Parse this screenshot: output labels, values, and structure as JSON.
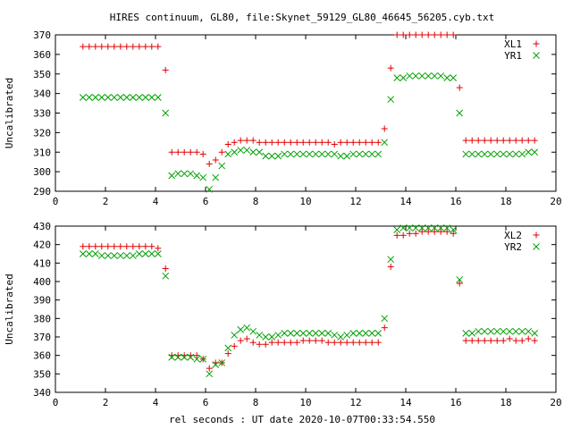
{
  "title": "HIRES continuum, GL80, file:Skynet_59129_GL80_46645_56205.cyb.txt",
  "xlabel": "rel seconds : UT date 2020-10-07T00:33:54.550",
  "colors": {
    "red": "#e00000",
    "green": "#00a000"
  },
  "chart_data": [
    {
      "type": "scatter",
      "ylabel": "Uncalibrated",
      "xlim": [
        0,
        20
      ],
      "ylim": [
        290,
        370
      ],
      "xticks": [
        0,
        2,
        4,
        6,
        8,
        10,
        12,
        14,
        16,
        18,
        20
      ],
      "yticks": [
        290,
        300,
        310,
        320,
        330,
        340,
        350,
        360,
        370
      ],
      "legend": "top-right",
      "series": [
        {
          "name": "XL1",
          "marker": "plus",
          "color": "#e00000",
          "x": [
            1.1,
            1.35,
            1.6,
            1.85,
            2.1,
            2.35,
            2.6,
            2.85,
            3.1,
            3.35,
            3.6,
            3.85,
            4.1,
            4.4,
            4.65,
            4.9,
            5.15,
            5.4,
            5.65,
            5.9,
            6.15,
            6.4,
            6.65,
            6.9,
            7.15,
            7.4,
            7.65,
            7.9,
            8.15,
            8.4,
            8.65,
            8.9,
            9.15,
            9.4,
            9.65,
            9.9,
            10.15,
            10.4,
            10.65,
            10.9,
            11.15,
            11.4,
            11.65,
            11.9,
            12.15,
            12.4,
            12.65,
            12.9,
            13.15,
            13.4,
            13.65,
            13.9,
            14.15,
            14.4,
            14.65,
            14.9,
            15.15,
            15.4,
            15.65,
            15.9,
            16.15,
            16.4,
            16.65,
            16.9,
            17.15,
            17.4,
            17.65,
            17.9,
            18.15,
            18.4,
            18.65,
            18.9,
            19.15
          ],
          "y": [
            364,
            364,
            364,
            364,
            364,
            364,
            364,
            364,
            364,
            364,
            364,
            364,
            364,
            352,
            310,
            310,
            310,
            310,
            310,
            309,
            304,
            306,
            310,
            314,
            315,
            316,
            316,
            316,
            315,
            315,
            315,
            315,
            315,
            315,
            315,
            315,
            315,
            315,
            315,
            315,
            314,
            315,
            315,
            315,
            315,
            315,
            315,
            315,
            322,
            353,
            370,
            370,
            370,
            370,
            370,
            370,
            370,
            370,
            370,
            370,
            343,
            316,
            316,
            316,
            316,
            316,
            316,
            316,
            316,
            316,
            316,
            316,
            316
          ]
        },
        {
          "name": "YR1",
          "marker": "cross",
          "color": "#00a000",
          "x": [
            1.1,
            1.35,
            1.6,
            1.85,
            2.1,
            2.35,
            2.6,
            2.85,
            3.1,
            3.35,
            3.6,
            3.85,
            4.1,
            4.4,
            4.65,
            4.9,
            5.15,
            5.4,
            5.65,
            5.9,
            6.15,
            6.4,
            6.65,
            6.9,
            7.15,
            7.4,
            7.65,
            7.9,
            8.15,
            8.4,
            8.65,
            8.9,
            9.15,
            9.4,
            9.65,
            9.9,
            10.15,
            10.4,
            10.65,
            10.9,
            11.15,
            11.4,
            11.65,
            11.9,
            12.15,
            12.4,
            12.65,
            12.9,
            13.15,
            13.4,
            13.65,
            13.9,
            14.15,
            14.4,
            14.65,
            14.9,
            15.15,
            15.4,
            15.65,
            15.9,
            16.15,
            16.4,
            16.65,
            16.9,
            17.15,
            17.4,
            17.65,
            17.9,
            18.15,
            18.4,
            18.65,
            18.9,
            19.15
          ],
          "y": [
            338,
            338,
            338,
            338,
            338,
            338,
            338,
            338,
            338,
            338,
            338,
            338,
            338,
            330,
            298,
            299,
            299,
            299,
            298,
            297,
            291,
            297,
            303,
            309,
            310,
            311,
            311,
            310,
            310,
            308,
            308,
            308,
            309,
            309,
            309,
            309,
            309,
            309,
            309,
            309,
            309,
            308,
            308,
            309,
            309,
            309,
            309,
            309,
            315,
            337,
            348,
            348,
            349,
            349,
            349,
            349,
            349,
            349,
            348,
            348,
            330,
            309,
            309,
            309,
            309,
            309,
            309,
            309,
            309,
            309,
            309,
            310,
            310
          ]
        }
      ]
    },
    {
      "type": "scatter",
      "ylabel": "Uncalibrated",
      "xlim": [
        0,
        20
      ],
      "ylim": [
        340,
        430
      ],
      "xticks": [
        0,
        2,
        4,
        6,
        8,
        10,
        12,
        14,
        16,
        18,
        20
      ],
      "yticks": [
        340,
        350,
        360,
        370,
        380,
        390,
        400,
        410,
        420,
        430
      ],
      "legend": "top-right",
      "series": [
        {
          "name": "XL2",
          "marker": "plus",
          "color": "#e00000",
          "x": [
            1.1,
            1.35,
            1.6,
            1.85,
            2.1,
            2.35,
            2.6,
            2.85,
            3.1,
            3.35,
            3.6,
            3.85,
            4.1,
            4.4,
            4.65,
            4.9,
            5.15,
            5.4,
            5.65,
            5.9,
            6.15,
            6.4,
            6.65,
            6.9,
            7.15,
            7.4,
            7.65,
            7.9,
            8.15,
            8.4,
            8.65,
            8.9,
            9.15,
            9.4,
            9.65,
            9.9,
            10.15,
            10.4,
            10.65,
            10.9,
            11.15,
            11.4,
            11.65,
            11.9,
            12.15,
            12.4,
            12.65,
            12.9,
            13.15,
            13.4,
            13.65,
            13.9,
            14.15,
            14.4,
            14.65,
            14.9,
            15.15,
            15.4,
            15.65,
            15.9,
            16.15,
            16.4,
            16.65,
            16.9,
            17.15,
            17.4,
            17.65,
            17.9,
            18.15,
            18.4,
            18.65,
            18.9,
            19.15
          ],
          "y": [
            419,
            419,
            419,
            419,
            419,
            419,
            419,
            419,
            419,
            419,
            419,
            419,
            418,
            407,
            360,
            360,
            360,
            360,
            360,
            358,
            353,
            356,
            356,
            361,
            365,
            368,
            369,
            367,
            366,
            366,
            367,
            367,
            367,
            367,
            367,
            368,
            368,
            368,
            368,
            367,
            367,
            367,
            367,
            367,
            367,
            367,
            367,
            367,
            375,
            408,
            425,
            425,
            426,
            426,
            427,
            427,
            427,
            427,
            427,
            426,
            399,
            368,
            368,
            368,
            368,
            368,
            368,
            368,
            369,
            368,
            368,
            369,
            368
          ]
        },
        {
          "name": "YR2",
          "marker": "cross",
          "color": "#00a000",
          "x": [
            1.1,
            1.35,
            1.6,
            1.85,
            2.1,
            2.35,
            2.6,
            2.85,
            3.1,
            3.35,
            3.6,
            3.85,
            4.1,
            4.4,
            4.65,
            4.9,
            5.15,
            5.4,
            5.65,
            5.9,
            6.15,
            6.4,
            6.65,
            6.9,
            7.15,
            7.4,
            7.65,
            7.9,
            8.15,
            8.4,
            8.65,
            8.9,
            9.15,
            9.4,
            9.65,
            9.9,
            10.15,
            10.4,
            10.65,
            10.9,
            11.15,
            11.4,
            11.65,
            11.9,
            12.15,
            12.4,
            12.65,
            12.9,
            13.15,
            13.4,
            13.65,
            13.9,
            14.15,
            14.4,
            14.65,
            14.9,
            15.15,
            15.4,
            15.65,
            15.9,
            16.15,
            16.4,
            16.65,
            16.9,
            17.15,
            17.4,
            17.65,
            17.9,
            18.15,
            18.4,
            18.65,
            18.9,
            19.15
          ],
          "y": [
            415,
            415,
            415,
            414,
            414,
            414,
            414,
            414,
            414,
            415,
            415,
            415,
            415,
            403,
            359,
            359,
            359,
            359,
            358,
            358,
            350,
            355,
            356,
            364,
            371,
            374,
            375,
            373,
            371,
            370,
            370,
            371,
            372,
            372,
            372,
            372,
            372,
            372,
            372,
            372,
            371,
            370,
            371,
            372,
            372,
            372,
            372,
            372,
            380,
            412,
            428,
            429,
            429,
            429,
            429,
            429,
            429,
            429,
            429,
            428,
            401,
            372,
            372,
            373,
            373,
            373,
            373,
            373,
            373,
            373,
            373,
            373,
            372
          ]
        }
      ]
    }
  ]
}
